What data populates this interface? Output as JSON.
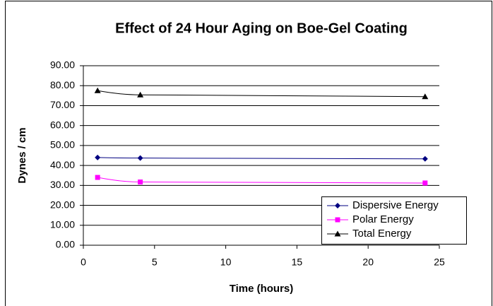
{
  "chart_data": {
    "type": "line",
    "title": "Effect of 24 Hour Aging on Boe-Gel Coating",
    "x_label": "Time (hours)",
    "y_label": "Dynes / cm",
    "x": [
      1,
      4,
      24
    ],
    "series": [
      {
        "name": "Dispersive Energy",
        "color": "#000080",
        "marker": "diamond",
        "values": [
          44.0,
          43.7,
          43.3
        ]
      },
      {
        "name": "Polar Energy",
        "color": "#ff00ff",
        "marker": "square",
        "values": [
          34.0,
          31.7,
          31.2
        ]
      },
      {
        "name": "Total Energy",
        "color": "#000000",
        "marker": "triangle",
        "values": [
          77.5,
          75.4,
          74.5
        ]
      }
    ],
    "xlim": [
      0,
      25
    ],
    "xticks": [
      0,
      5,
      10,
      15,
      20,
      25
    ],
    "ylim": [
      0,
      90
    ],
    "yticks": [
      {
        "value": 0,
        "label": "0.00"
      },
      {
        "value": 10,
        "label": "10.00"
      },
      {
        "value": 20,
        "label": "20.00"
      },
      {
        "value": 30,
        "label": "30.00"
      },
      {
        "value": 40,
        "label": "40.00"
      },
      {
        "value": 50,
        "label": "50.00"
      },
      {
        "value": 60,
        "label": "60.00"
      },
      {
        "value": 70,
        "label": "70.00"
      },
      {
        "value": 80,
        "label": "80.00"
      },
      {
        "value": 90,
        "label": "90.00"
      }
    ],
    "grid": true,
    "legend": "lower right"
  }
}
